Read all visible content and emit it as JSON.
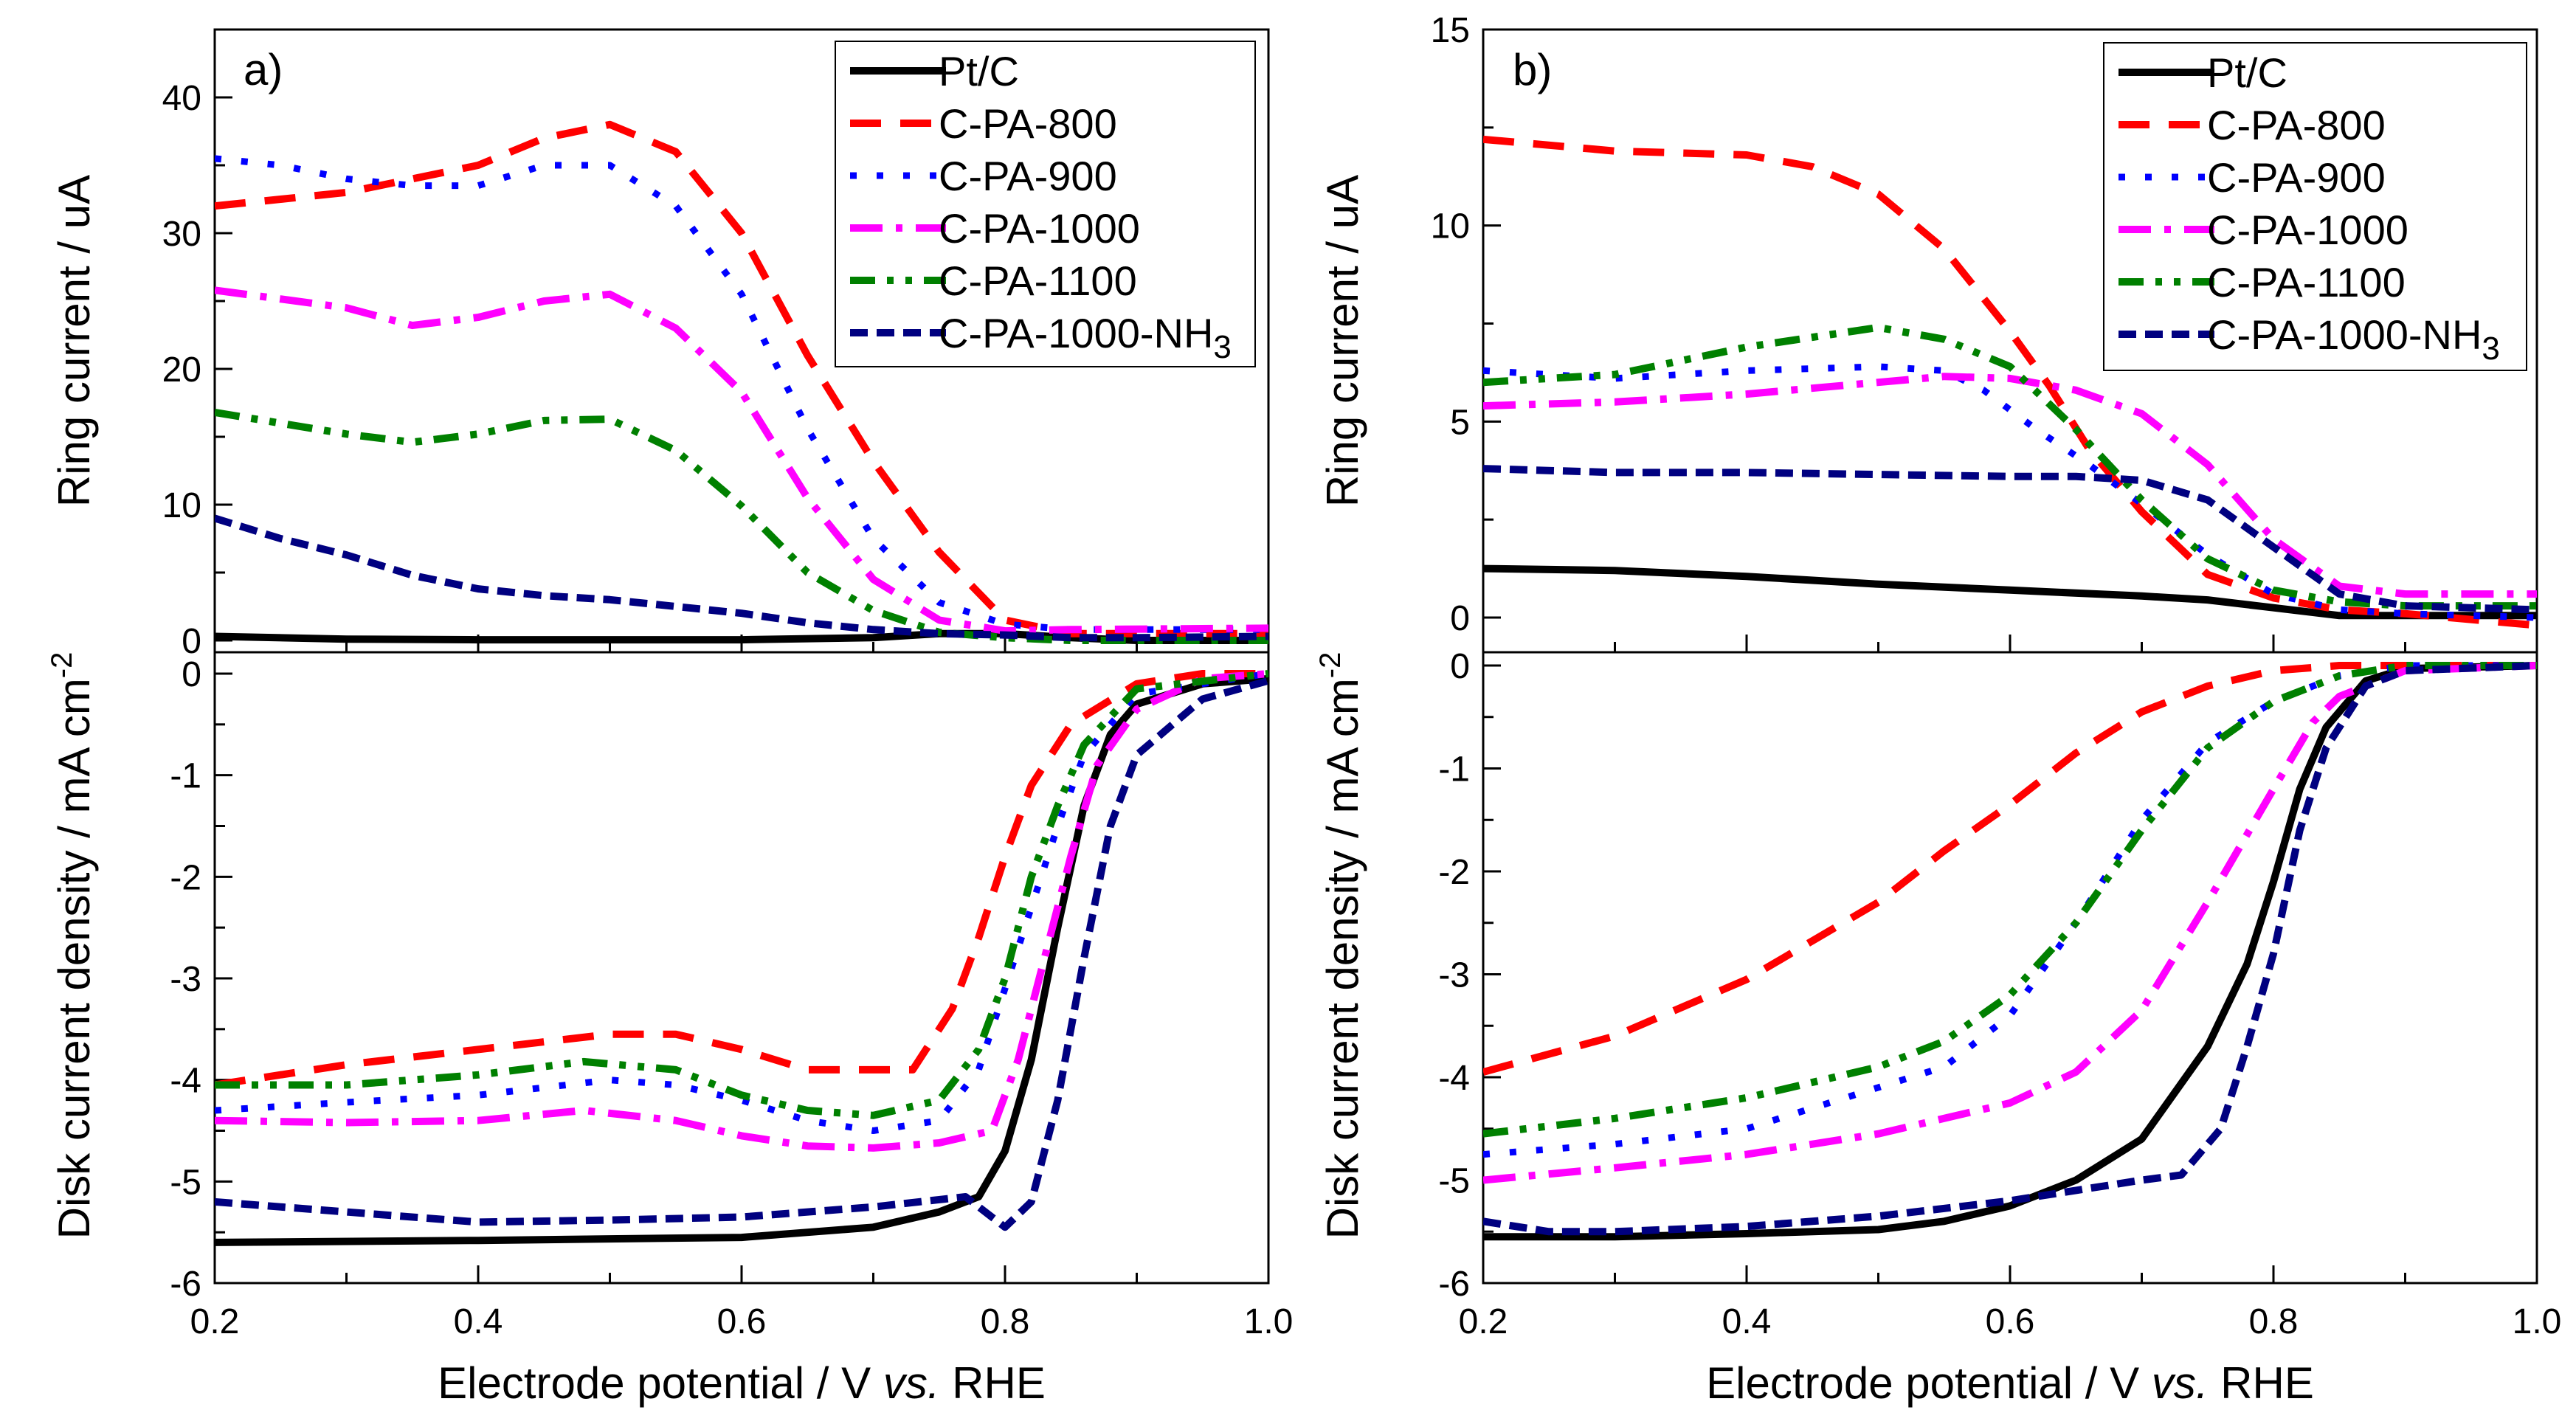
{
  "series_styles": [
    {
      "name": "Pt/C",
      "color": "#000000"
    },
    {
      "name": "C-PA-800",
      "color": "#ff0000"
    },
    {
      "name": "C-PA-900",
      "color": "#0000ff"
    },
    {
      "name": "C-PA-1000",
      "color": "#ff00ff"
    },
    {
      "name": "C-PA-1100",
      "color": "#008000"
    },
    {
      "name": "C-PA-1000-NH",
      "sub": "3",
      "color": "#000080"
    }
  ],
  "xlabel": {
    "pre": "Electrode potential / V ",
    "italic": "vs.",
    "post": " RHE"
  },
  "ring_ylabel": "Ring current  / uA",
  "disk_ylabel": {
    "main": "Disk current density / mA cm",
    "sup": "-2"
  },
  "chart_data": [
    {
      "panel": "a)",
      "type": "line",
      "xlim": [
        0.2,
        1.0
      ],
      "xticks": [
        "0.2",
        "0.4",
        "0.6",
        "0.8",
        "1.0"
      ],
      "ring": {
        "ylim": [
          0,
          45
        ],
        "yticks": [
          "0",
          "10",
          "20",
          "30",
          "40"
        ],
        "series": [
          {
            "name": "Pt/C",
            "x": [
              0.2,
              0.3,
              0.4,
              0.5,
              0.6,
              0.7,
              0.75,
              0.8,
              0.85,
              0.9,
              1.0
            ],
            "y": [
              0.3,
              0.1,
              0.05,
              0.05,
              0.05,
              0.2,
              0.5,
              0.5,
              0.2,
              0,
              0
            ]
          },
          {
            "name": "C-PA-800",
            "x": [
              0.2,
              0.3,
              0.4,
              0.45,
              0.5,
              0.55,
              0.6,
              0.65,
              0.7,
              0.75,
              0.8,
              0.85,
              0.9,
              1.0
            ],
            "y": [
              32,
              33,
              35,
              37,
              38,
              36,
              30,
              21,
              13.2,
              6.5,
              1.5,
              0.5,
              0.5,
              0.5
            ]
          },
          {
            "name": "C-PA-900",
            "x": [
              0.2,
              0.25,
              0.3,
              0.35,
              0.4,
              0.45,
              0.5,
              0.55,
              0.6,
              0.65,
              0.7,
              0.75,
              0.8,
              0.85,
              0.9,
              1.0
            ],
            "y": [
              35.5,
              35,
              34,
              33.5,
              33.5,
              35,
              35,
              32,
              25.5,
              15.6,
              7.5,
              2.8,
              1.2,
              0.8,
              0.8,
              0.8
            ]
          },
          {
            "name": "C-PA-1000",
            "x": [
              0.2,
              0.3,
              0.35,
              0.4,
              0.45,
              0.5,
              0.55,
              0.6,
              0.65,
              0.7,
              0.75,
              0.8,
              0.85,
              1.0
            ],
            "y": [
              25.8,
              24.5,
              23.2,
              23.8,
              25,
              25.5,
              23,
              18.3,
              10.5,
              4.5,
              1.5,
              0.7,
              0.8,
              0.9
            ]
          },
          {
            "name": "C-PA-1100",
            "x": [
              0.2,
              0.3,
              0.35,
              0.4,
              0.45,
              0.5,
              0.55,
              0.6,
              0.65,
              0.7,
              0.75,
              0.8,
              0.85,
              1.0
            ],
            "y": [
              16.8,
              15.2,
              14.6,
              15.2,
              16.2,
              16.3,
              14,
              9.9,
              5,
              2.2,
              0.6,
              0.2,
              0,
              0
            ]
          },
          {
            "name": "C-PA-1000-NH3",
            "x": [
              0.2,
              0.25,
              0.3,
              0.35,
              0.4,
              0.45,
              0.5,
              0.55,
              0.6,
              0.65,
              0.7,
              0.75,
              0.8,
              0.85,
              0.9,
              1.0
            ],
            "y": [
              9,
              7.5,
              6.3,
              4.8,
              3.8,
              3.3,
              3,
              2.5,
              2,
              1.3,
              0.8,
              0.5,
              0.4,
              0.2,
              0.2,
              0.3
            ]
          }
        ]
      },
      "disk": {
        "ylim": [
          -6,
          0.1
        ],
        "yticks": [
          "0",
          "-1",
          "-2",
          "-3",
          "-4",
          "-5",
          "-6"
        ],
        "series": [
          {
            "name": "Pt/C",
            "x": [
              0.2,
              0.4,
              0.6,
              0.7,
              0.75,
              0.78,
              0.8,
              0.82,
              0.84,
              0.86,
              0.88,
              0.9,
              0.95,
              1.0
            ],
            "y": [
              -5.6,
              -5.58,
              -5.55,
              -5.45,
              -5.3,
              -5.15,
              -4.7,
              -3.8,
              -2.5,
              -1.3,
              -0.6,
              -0.3,
              -0.1,
              -0.05
            ]
          },
          {
            "name": "C-PA-800",
            "x": [
              0.2,
              0.3,
              0.4,
              0.5,
              0.55,
              0.6,
              0.65,
              0.7,
              0.73,
              0.76,
              0.78,
              0.8,
              0.82,
              0.85,
              0.9,
              0.95,
              1.0
            ],
            "y": [
              -4.05,
              -3.85,
              -3.7,
              -3.55,
              -3.55,
              -3.7,
              -3.9,
              -3.9,
              -3.9,
              -3.3,
              -2.6,
              -1.8,
              -1.1,
              -0.5,
              -0.1,
              0,
              0
            ]
          },
          {
            "name": "C-PA-900",
            "x": [
              0.2,
              0.3,
              0.4,
              0.5,
              0.55,
              0.6,
              0.65,
              0.7,
              0.75,
              0.78,
              0.8,
              0.82,
              0.84,
              0.86,
              0.9,
              1.0
            ],
            "y": [
              -4.3,
              -4.22,
              -4.15,
              -4.0,
              -4.05,
              -4.2,
              -4.4,
              -4.5,
              -4.4,
              -3.9,
              -3.1,
              -2.3,
              -1.5,
              -0.8,
              -0.2,
              0
            ]
          },
          {
            "name": "C-PA-1000",
            "x": [
              0.2,
              0.3,
              0.4,
              0.48,
              0.55,
              0.6,
              0.65,
              0.7,
              0.75,
              0.79,
              0.81,
              0.83,
              0.85,
              0.87,
              0.9,
              0.95,
              1.0
            ],
            "y": [
              -4.4,
              -4.42,
              -4.4,
              -4.3,
              -4.4,
              -4.55,
              -4.65,
              -4.67,
              -4.62,
              -4.5,
              -3.8,
              -2.8,
              -1.8,
              -0.9,
              -0.35,
              -0.05,
              0
            ]
          },
          {
            "name": "C-PA-1100",
            "x": [
              0.2,
              0.3,
              0.4,
              0.48,
              0.55,
              0.6,
              0.65,
              0.7,
              0.75,
              0.78,
              0.8,
              0.82,
              0.84,
              0.86,
              0.9,
              1.0
            ],
            "y": [
              -4.05,
              -4.05,
              -3.95,
              -3.82,
              -3.9,
              -4.15,
              -4.3,
              -4.35,
              -4.2,
              -3.7,
              -3.0,
              -2.0,
              -1.3,
              -0.7,
              -0.15,
              0
            ]
          },
          {
            "name": "C-PA-1000-NH3",
            "x": [
              0.2,
              0.3,
              0.4,
              0.5,
              0.6,
              0.7,
              0.77,
              0.8,
              0.82,
              0.84,
              0.86,
              0.88,
              0.9,
              0.95,
              1.0
            ],
            "y": [
              -5.2,
              -5.3,
              -5.4,
              -5.38,
              -5.35,
              -5.25,
              -5.15,
              -5.45,
              -5.2,
              -4.2,
              -2.8,
              -1.5,
              -0.8,
              -0.25,
              -0.07
            ]
          }
        ]
      }
    },
    {
      "panel": "b)",
      "type": "line",
      "xlim": [
        0.2,
        1.0
      ],
      "xticks": [
        "0.2",
        "0.4",
        "0.6",
        "0.8",
        "1.0"
      ],
      "ring": {
        "ylim": [
          -0.2,
          15
        ],
        "yticks": [
          "0",
          "5",
          "10",
          "15"
        ],
        "series": [
          {
            "name": "Pt/C",
            "x": [
              0.2,
              0.3,
              0.4,
              0.5,
              0.6,
              0.7,
              0.75,
              0.8,
              0.85,
              0.9,
              1.0
            ],
            "y": [
              1.25,
              1.2,
              1.05,
              0.85,
              0.7,
              0.55,
              0.45,
              0.25,
              0.05,
              0.05,
              0.05
            ]
          },
          {
            "name": "C-PA-800",
            "x": [
              0.2,
              0.3,
              0.4,
              0.45,
              0.5,
              0.55,
              0.6,
              0.63,
              0.66,
              0.7,
              0.75,
              0.8,
              0.85,
              0.9,
              1.0
            ],
            "y": [
              12.2,
              11.9,
              11.8,
              11.5,
              10.8,
              9.4,
              7.3,
              5.9,
              4.3,
              2.7,
              1.1,
              0.5,
              0.2,
              0.1,
              -0.2
            ]
          },
          {
            "name": "C-PA-900",
            "x": [
              0.2,
              0.3,
              0.4,
              0.5,
              0.55,
              0.58,
              0.62,
              0.66,
              0.7,
              0.75,
              0.8,
              0.85,
              0.9,
              1.0
            ],
            "y": [
              6.3,
              6.1,
              6.3,
              6.4,
              6.3,
              5.8,
              4.8,
              3.9,
              2.9,
              1.6,
              0.6,
              0.2,
              0.1,
              0
            ]
          },
          {
            "name": "C-PA-1000",
            "x": [
              0.2,
              0.3,
              0.4,
              0.5,
              0.55,
              0.6,
              0.65,
              0.7,
              0.75,
              0.8,
              0.85,
              0.9,
              1.0
            ],
            "y": [
              5.4,
              5.5,
              5.7,
              6.0,
              6.15,
              6.1,
              5.8,
              5.2,
              3.9,
              2.0,
              0.8,
              0.6,
              0.6
            ]
          },
          {
            "name": "C-PA-1100",
            "x": [
              0.2,
              0.3,
              0.4,
              0.5,
              0.55,
              0.6,
              0.65,
              0.7,
              0.75,
              0.8,
              0.85,
              0.9,
              1.0
            ],
            "y": [
              6.0,
              6.2,
              6.9,
              7.4,
              7.1,
              6.4,
              4.8,
              3.0,
              1.5,
              0.7,
              0.4,
              0.3,
              0.3
            ]
          },
          {
            "name": "C-PA-1000-NH3",
            "x": [
              0.2,
              0.3,
              0.4,
              0.5,
              0.6,
              0.65,
              0.7,
              0.75,
              0.8,
              0.85,
              0.9,
              1.0
            ],
            "y": [
              3.8,
              3.7,
              3.7,
              3.65,
              3.6,
              3.6,
              3.5,
              3.0,
              1.8,
              0.6,
              0.3,
              0.2
            ]
          }
        ]
      },
      "disk": {
        "ylim": [
          -6,
          0.1
        ],
        "yticks": [
          "0",
          "-1",
          "-2",
          "-3",
          "-4",
          "-5",
          "-6"
        ],
        "series": [
          {
            "name": "Pt/C",
            "x": [
              0.2,
              0.3,
              0.4,
              0.5,
              0.55,
              0.6,
              0.65,
              0.7,
              0.75,
              0.78,
              0.8,
              0.82,
              0.84,
              0.87,
              0.9,
              1.0
            ],
            "y": [
              -5.55,
              -5.55,
              -5.52,
              -5.48,
              -5.4,
              -5.25,
              -5.0,
              -4.6,
              -3.7,
              -2.9,
              -2.1,
              -1.2,
              -0.6,
              -0.15,
              -0.03,
              0
            ]
          },
          {
            "name": "C-PA-800",
            "x": [
              0.2,
              0.3,
              0.4,
              0.5,
              0.55,
              0.6,
              0.65,
              0.7,
              0.75,
              0.8,
              0.85,
              1.0
            ],
            "y": [
              -3.95,
              -3.6,
              -3.05,
              -2.3,
              -1.8,
              -1.35,
              -0.85,
              -0.45,
              -0.2,
              -0.05,
              0,
              0
            ]
          },
          {
            "name": "C-PA-900",
            "x": [
              0.2,
              0.3,
              0.4,
              0.5,
              0.55,
              0.6,
              0.65,
              0.7,
              0.75,
              0.8,
              0.85,
              0.9,
              1.0
            ],
            "y": [
              -4.75,
              -4.65,
              -4.5,
              -4.1,
              -3.9,
              -3.4,
              -2.5,
              -1.5,
              -0.75,
              -0.35,
              -0.1,
              0,
              0
            ]
          },
          {
            "name": "C-PA-1000",
            "x": [
              0.2,
              0.3,
              0.4,
              0.5,
              0.55,
              0.6,
              0.65,
              0.7,
              0.75,
              0.8,
              0.83,
              0.85,
              0.9,
              1.0
            ],
            "y": [
              -5.0,
              -4.88,
              -4.75,
              -4.55,
              -4.4,
              -4.25,
              -3.95,
              -3.35,
              -2.3,
              -1.2,
              -0.55,
              -0.3,
              -0.05,
              0
            ]
          },
          {
            "name": "C-PA-1100",
            "x": [
              0.2,
              0.3,
              0.4,
              0.5,
              0.55,
              0.6,
              0.65,
              0.7,
              0.75,
              0.8,
              0.85,
              0.9,
              1.0
            ],
            "y": [
              -4.55,
              -4.4,
              -4.2,
              -3.9,
              -3.65,
              -3.2,
              -2.5,
              -1.6,
              -0.8,
              -0.35,
              -0.1,
              0,
              0
            ]
          },
          {
            "name": "C-PA-1000-NH3",
            "x": [
              0.2,
              0.25,
              0.3,
              0.4,
              0.5,
              0.6,
              0.65,
              0.7,
              0.73,
              0.76,
              0.78,
              0.8,
              0.82,
              0.84,
              0.87,
              0.9,
              1.0
            ],
            "y": [
              -5.4,
              -5.5,
              -5.5,
              -5.45,
              -5.35,
              -5.2,
              -5.1,
              -5.0,
              -4.95,
              -4.5,
              -3.7,
              -2.8,
              -1.6,
              -0.8,
              -0.2,
              -0.05,
              0
            ]
          }
        ]
      }
    }
  ]
}
